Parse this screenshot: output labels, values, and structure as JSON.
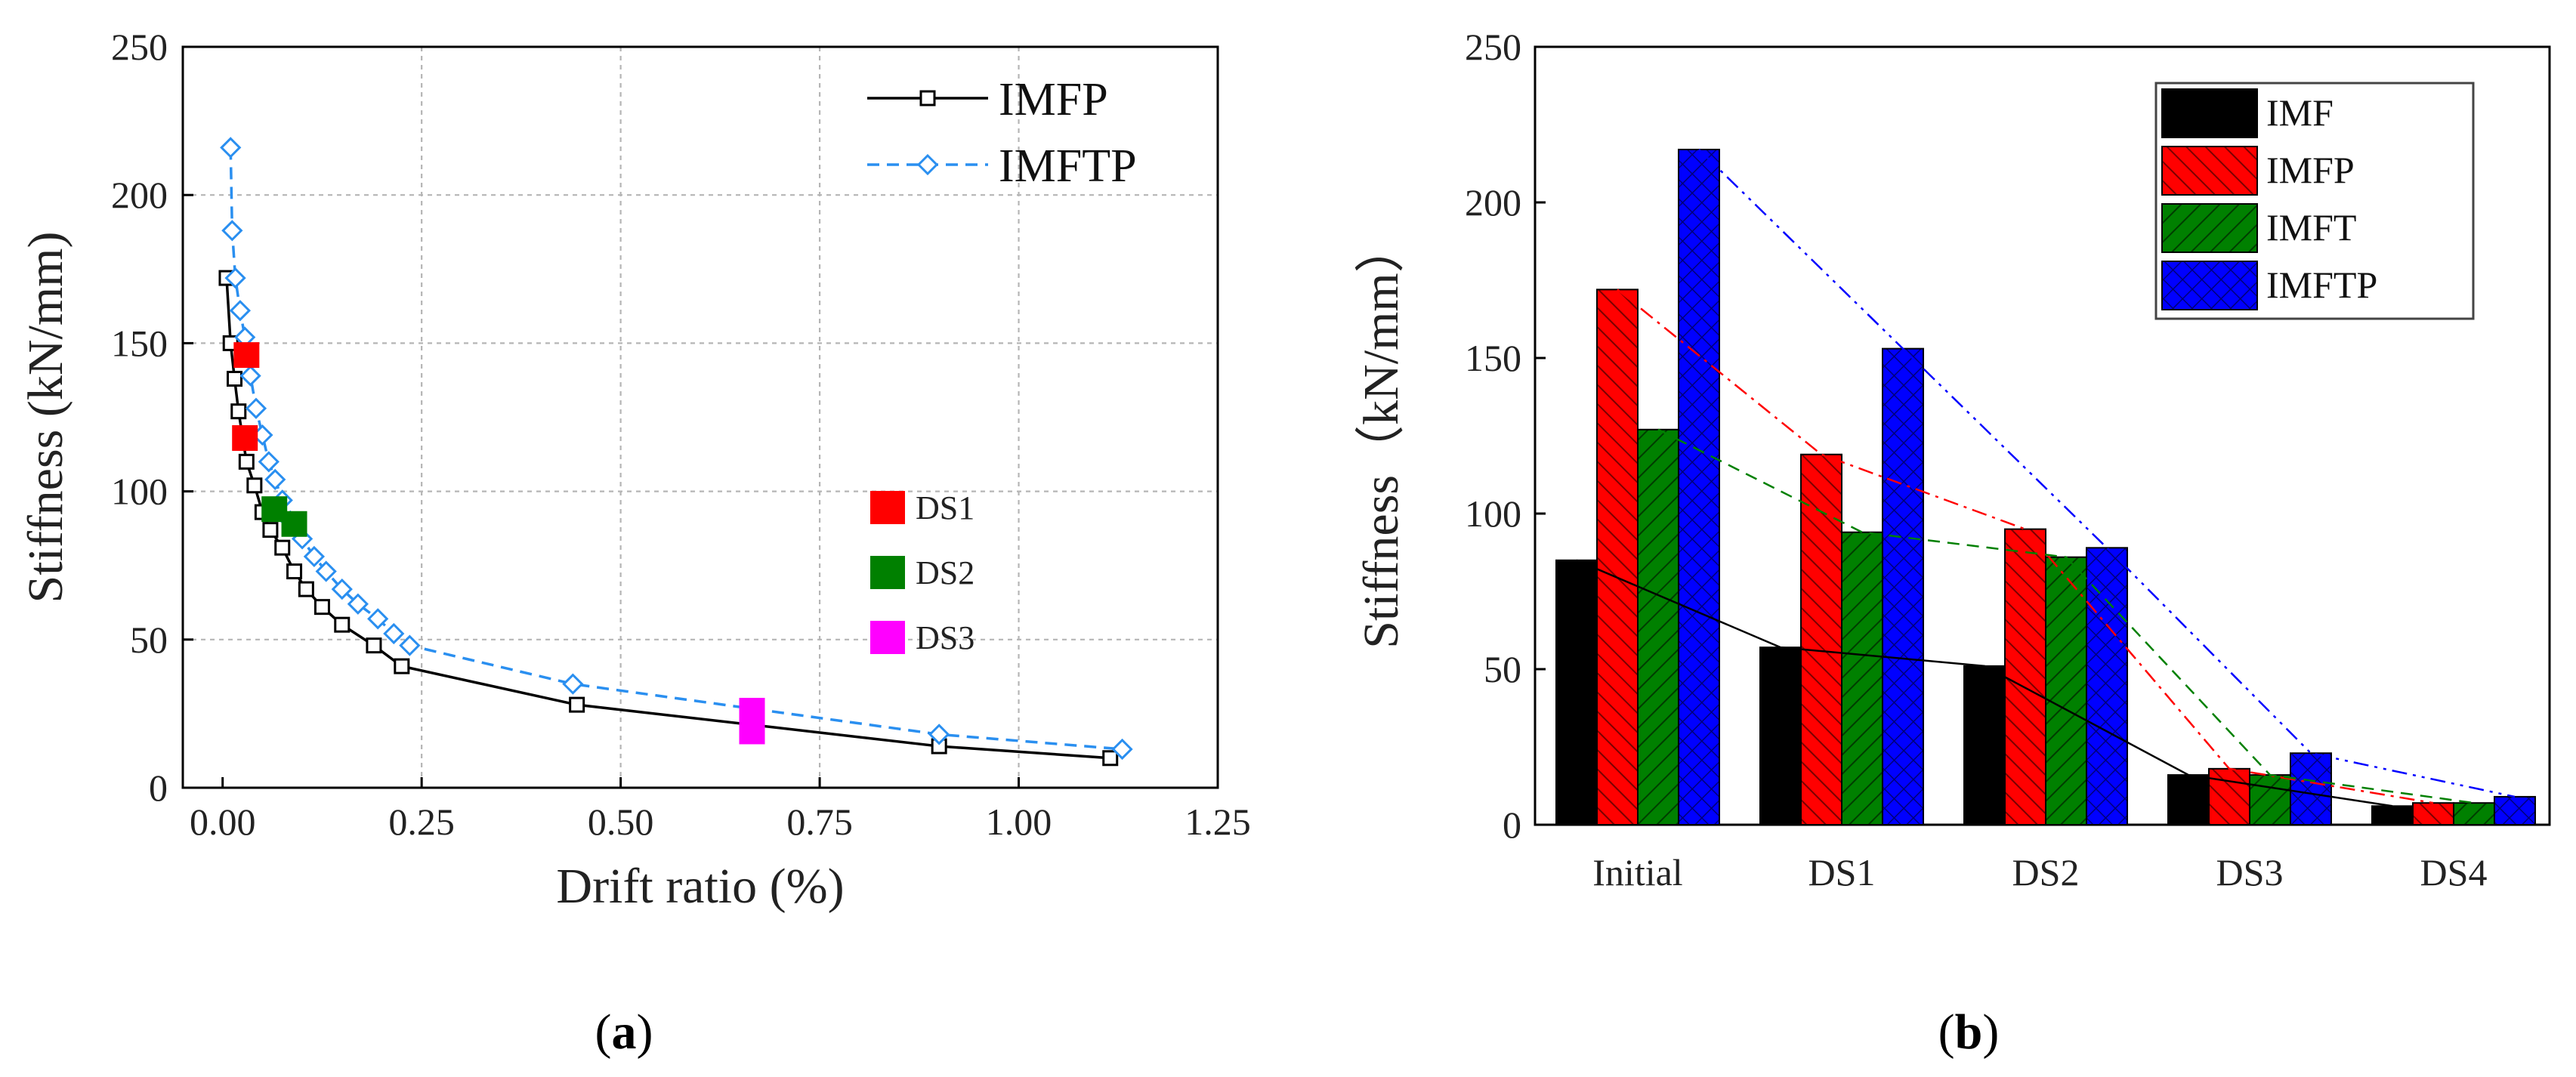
{
  "chart_data": [
    {
      "type": "line",
      "panel_label": [
        "(",
        "a",
        ")"
      ],
      "xlabel": "Drift ratio (%)",
      "ylabel": "Stiffness (kN/mm)",
      "xlim": [
        -0.05,
        1.25
      ],
      "ylim": [
        0,
        250
      ],
      "x_ticks": [
        "0.00",
        "0.25",
        "0.50",
        "0.75",
        "1.00",
        "1.25"
      ],
      "y_ticks": [
        "0",
        "50",
        "100",
        "150",
        "200",
        "250"
      ],
      "grid": true,
      "legend_position": "top-right",
      "series": [
        {
          "name": "IMFP",
          "color": "#000000",
          "style": "solid",
          "marker": "square",
          "x": [
            0.005,
            0.01,
            0.015,
            0.02,
            0.03,
            0.04,
            0.05,
            0.06,
            0.075,
            0.09,
            0.105,
            0.125,
            0.15,
            0.19,
            0.225,
            0.445,
            0.9,
            1.115
          ],
          "y": [
            172,
            150,
            138,
            127,
            110,
            102,
            93,
            87,
            81,
            73,
            67,
            61,
            55,
            48,
            41,
            28,
            14,
            10
          ]
        },
        {
          "name": "IMFTP",
          "color": "#2a8ff0",
          "style": "dashed",
          "marker": "diamond",
          "x": [
            0.01,
            0.012,
            0.016,
            0.022,
            0.028,
            0.035,
            0.042,
            0.05,
            0.058,
            0.066,
            0.075,
            0.085,
            0.1,
            0.115,
            0.13,
            0.15,
            0.17,
            0.195,
            0.215,
            0.235,
            0.44,
            0.9,
            1.13
          ],
          "y": [
            216,
            188,
            172,
            161,
            152,
            139,
            128,
            119,
            110,
            104,
            97,
            90,
            84,
            78,
            73,
            67,
            62,
            57,
            52,
            48,
            35,
            18,
            13
          ]
        }
      ],
      "damage_markers": [
        {
          "name": "DS1",
          "color": "#ff0000",
          "points": [
            {
              "x": 0.03,
              "y": 146
            },
            {
              "x": 0.028,
              "y": 118
            }
          ]
        },
        {
          "name": "DS2",
          "color": "#008000",
          "points": [
            {
              "x": 0.065,
              "y": 94
            },
            {
              "x": 0.09,
              "y": 89
            }
          ]
        },
        {
          "name": "DS3",
          "color": "#ff00ff",
          "points": [
            {
              "x": 0.665,
              "y": 26
            },
            {
              "x": 0.665,
              "y": 19
            }
          ]
        }
      ]
    },
    {
      "type": "bar",
      "panel_label": [
        "(",
        "b",
        ")"
      ],
      "xlabel": "",
      "ylabel": "Stiffness（kN/mm）",
      "ylim": [
        0,
        250
      ],
      "y_ticks": [
        "0",
        "50",
        "100",
        "150",
        "200",
        "250"
      ],
      "categories": [
        "Initial",
        "DS1",
        "DS2",
        "DS3",
        "DS4"
      ],
      "legend_position": "top-right",
      "series": [
        {
          "name": "IMF",
          "color": "#000000",
          "pattern": "none",
          "line_style": "solid",
          "values": [
            85,
            57,
            51,
            16,
            6
          ]
        },
        {
          "name": "IMFP",
          "color": "#ff0000",
          "pattern": "diag-up",
          "line_style": "dashdot",
          "values": [
            172,
            119,
            95,
            18,
            7
          ]
        },
        {
          "name": "IMFT",
          "color": "#008000",
          "pattern": "diag-down",
          "line_style": "dashed",
          "values": [
            127,
            94,
            86,
            16,
            7
          ]
        },
        {
          "name": "IMFTP",
          "color": "#0000ff",
          "pattern": "cross",
          "line_style": "dashdotdot",
          "values": [
            217,
            153,
            89,
            23,
            9
          ]
        }
      ]
    }
  ]
}
